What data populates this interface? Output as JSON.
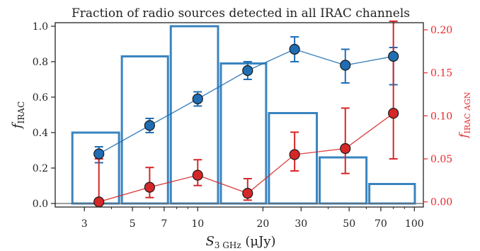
{
  "chart_data": {
    "type": "bar",
    "title": "Fraction of radio sources detected in all IRAC channels",
    "xlabel": "S3 GHz (μJy)",
    "xlabel_main": "S",
    "xlabel_sub": "3 GHz",
    "xlabel_unit": " (μJy)",
    "ylabel_left": "f_IRAC",
    "ylabel_left_main": "f",
    "ylabel_left_sub": "IRAC",
    "ylabel_right": "f_IRAC AGN",
    "ylabel_right_main": "f",
    "ylabel_right_sub": "IRAC AGN",
    "xscale": "log",
    "xlim": [
      2.2,
      110
    ],
    "ylim_left": [
      -0.02,
      1.02
    ],
    "ylim_right": [
      -0.006,
      0.2083
    ],
    "xticks": [
      3,
      5,
      7,
      10,
      20,
      30,
      50,
      70,
      100
    ],
    "xtick_labels": [
      "3",
      "5",
      "7",
      "10",
      "20",
      "30",
      "50",
      "70",
      "100"
    ],
    "yticks_left": [
      0.0,
      0.2,
      0.4,
      0.6,
      0.8,
      1.0
    ],
    "ytick_labels_left": [
      "0.0",
      "0.2",
      "0.4",
      "0.6",
      "0.8",
      "1.0"
    ],
    "yticks_right": [
      0.0,
      0.05,
      0.1,
      0.15,
      0.2
    ],
    "ytick_labels_right": [
      "0.00",
      "0.05",
      "0.10",
      "0.15",
      "0.20"
    ],
    "colors": {
      "histogram": "#3a84bf",
      "irac": "#1f6db3",
      "agn": "#d62728",
      "right_axis": "#e8262a",
      "axis": "#222222"
    },
    "histogram": {
      "bin_edges": [
        2.6,
        4.4,
        7.4,
        12.6,
        21.0,
        36.0,
        61.0,
        102.0
      ],
      "heights": [
        0.4,
        0.83,
        1.0,
        0.79,
        0.51,
        0.26,
        0.11
      ],
      "axis": "left"
    },
    "series": [
      {
        "axis": "left",
        "x": [
          3.5,
          6.0,
          10.0,
          17.0,
          28.0,
          48.0,
          80.0
        ],
        "y": [
          0.28,
          0.44,
          0.59,
          0.75,
          0.87,
          0.78,
          0.83
        ],
        "err_low": [
          0.05,
          0.04,
          0.04,
          0.05,
          0.07,
          0.1,
          0.16
        ],
        "err_high": [
          0.04,
          0.04,
          0.04,
          0.05,
          0.07,
          0.09,
          0.05
        ]
      },
      {
        "axis": "right",
        "x": [
          3.5,
          6.0,
          10.0,
          17.0,
          28.0,
          48.0,
          80.0
        ],
        "y": [
          0.0,
          0.017,
          0.031,
          0.01,
          0.055,
          0.062,
          0.103
        ],
        "err_low": [
          0.0,
          0.012,
          0.012,
          0.008,
          0.019,
          0.029,
          0.053
        ],
        "err_high": [
          0.05,
          0.023,
          0.018,
          0.017,
          0.026,
          0.047,
          0.107
        ]
      }
    ]
  }
}
